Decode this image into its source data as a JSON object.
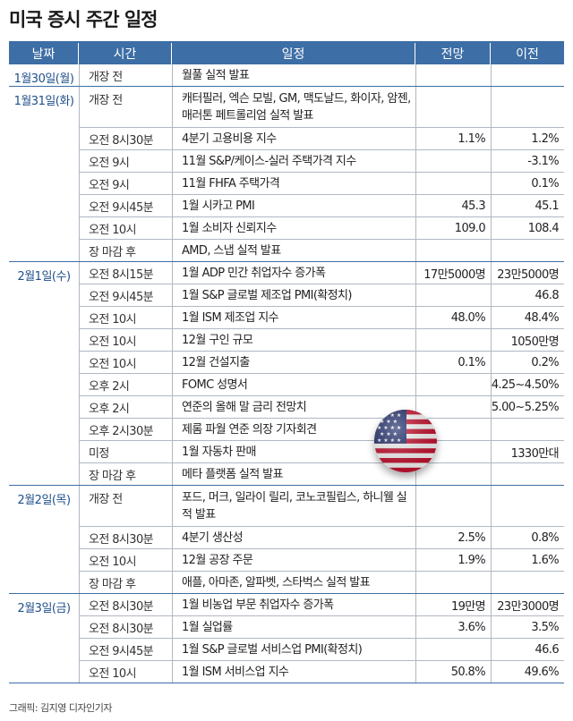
{
  "title": "미국 증시 주간 일정",
  "headers": [
    "날짜",
    "시간",
    "일정",
    "전망",
    "이전"
  ],
  "groups": [
    {
      "date": "1월30일(월)",
      "rows": [
        {
          "time": "개장 전",
          "event": "월풀 실적 발표",
          "expected": "",
          "previous": ""
        }
      ]
    },
    {
      "date": "1월31일(화)",
      "rows": [
        {
          "time": "개장 전",
          "event": "캐터필러, 엑슨 모빌, GM, 맥도날드, 화이자, 암젠, 매러톤 페트롤리엄 실적 발표",
          "expected": "",
          "previous": "",
          "tall": true
        },
        {
          "time": "오전 8시30분",
          "event": "4분기 고용비용 지수",
          "expected": "1.1%",
          "previous": "1.2%"
        },
        {
          "time": "오전 9시",
          "event": "11월 S&P/케이스-실러 주택가격 지수",
          "expected": "",
          "previous": "-3.1%"
        },
        {
          "time": "오전 9시",
          "event": "11월 FHFA 주택가격",
          "expected": "",
          "previous": "0.1%"
        },
        {
          "time": "오전 9시45분",
          "event": "1월 시카고 PMI",
          "expected": "45.3",
          "previous": "45.1"
        },
        {
          "time": "오전 10시",
          "event": "1월 소비자 신뢰지수",
          "expected": "109.0",
          "previous": "108.4"
        },
        {
          "time": "장 마감 후",
          "event": "AMD, 스냅 실적 발표",
          "expected": "",
          "previous": ""
        }
      ]
    },
    {
      "date": "2월1일(수)",
      "rows": [
        {
          "time": "오전 8시15분",
          "event": "1월 ADP 민간 취업자수 증가폭",
          "expected": "17만5000명",
          "previous": "23만5000명"
        },
        {
          "time": "오전 9시45분",
          "event": "1월 S&P 글로벌 제조업 PMI(확정치)",
          "expected": "",
          "previous": "46.8"
        },
        {
          "time": "오전 10시",
          "event": "1월 ISM 제조업 지수",
          "expected": "48.0%",
          "previous": "48.4%"
        },
        {
          "time": "오전 10시",
          "event": "12월 구인 규모",
          "expected": "",
          "previous": "1050만명"
        },
        {
          "time": "오전 10시",
          "event": "12월 건설지출",
          "expected": "0.1%",
          "previous": "0.2%"
        },
        {
          "time": "오후 2시",
          "event": "FOMC 성명서",
          "expected": "",
          "previous": "4.25~4.50%"
        },
        {
          "time": "오후 2시",
          "event": "연준의 올해 말 금리 전망치",
          "expected": "",
          "previous": "5.00~5.25%"
        },
        {
          "time": "오후 2시30분",
          "event": "제롬 파월 연준 의장 기자회견",
          "expected": "",
          "previous": ""
        },
        {
          "time": "미정",
          "event": "1월 자동차 판매",
          "expected": "",
          "previous": "1330만대"
        },
        {
          "time": "장 마감 후",
          "event": "메타 플랫폼 실적 발표",
          "expected": "",
          "previous": ""
        }
      ]
    },
    {
      "date": "2월2일(목)",
      "rows": [
        {
          "time": "개장 전",
          "event": "포드, 머크, 일라이 릴리, 코노코필립스, 하니웰 실적 발표",
          "expected": "",
          "previous": "",
          "tall": true
        },
        {
          "time": "오전 8시30분",
          "event": "4분기 생산성",
          "expected": "2.5%",
          "previous": "0.8%"
        },
        {
          "time": "오전 10시",
          "event": "12월 공장 주문",
          "expected": "1.9%",
          "previous": "1.6%"
        },
        {
          "time": "장 마감 후",
          "event": "애플, 아마존, 알파벳, 스타벅스 실적 발표",
          "expected": "",
          "previous": ""
        }
      ]
    },
    {
      "date": "2월3일(금)",
      "rows": [
        {
          "time": "오전 8시30분",
          "event": "1월 비농업 부문 취업자수 증가폭",
          "expected": "19만명",
          "previous": "23만3000명"
        },
        {
          "time": "오전 8시30분",
          "event": "1월 실업률",
          "expected": "3.6%",
          "previous": "3.5%"
        },
        {
          "time": "오전 9시45분",
          "event": "1월 S&P 글로벌 서비스업 PMI(확정치)",
          "expected": "",
          "previous": "46.6"
        },
        {
          "time": "오전 10시",
          "event": "1월 ISM 서비스업 지수",
          "expected": "50.8%",
          "previous": "49.6%"
        }
      ]
    }
  ],
  "credit": "그래픽: 김지영 디자인기자",
  "flag_icon": "us-flag-icon",
  "colors": {
    "header_bg": "#3d6ea5",
    "date_text": "#1f4f8a"
  }
}
